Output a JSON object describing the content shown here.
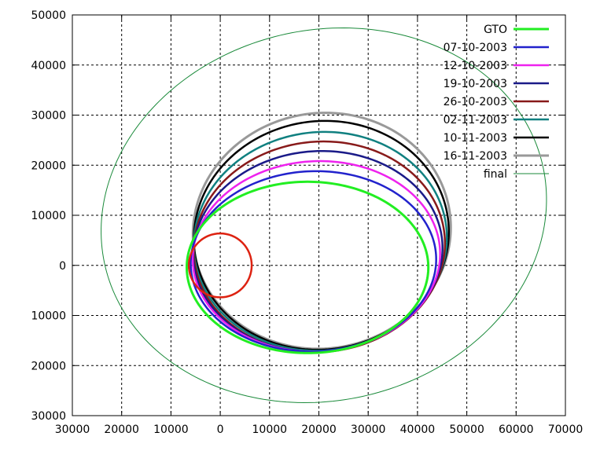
{
  "chart_data": {
    "type": "line",
    "title": "",
    "xlabel": "",
    "ylabel": "",
    "xlim": [
      -30000,
      70000
    ],
    "ylim": [
      -30000,
      50000
    ],
    "x_ticks": [
      -30000,
      -20000,
      -10000,
      0,
      10000,
      20000,
      30000,
      40000,
      50000,
      60000,
      70000
    ],
    "x_tick_labels": [
      "30000",
      "20000",
      "10000",
      "0",
      "10000",
      "20000",
      "30000",
      "40000",
      "50000",
      "60000",
      "70000"
    ],
    "y_ticks": [
      -30000,
      -20000,
      -10000,
      0,
      10000,
      20000,
      30000,
      40000,
      50000
    ],
    "y_tick_labels": [
      "30000",
      "20000",
      "10000",
      "0",
      "10000",
      "20000",
      "30000",
      "40000",
      "50000"
    ],
    "grid": true,
    "legend_position": "top-right",
    "earth": {
      "center": [
        0,
        0
      ],
      "radius": 6378,
      "color": "#dd2211"
    },
    "series": [
      {
        "name": "GTO",
        "color": "#22ee22",
        "width": 3,
        "orbit": {
          "cx": 17700,
          "cy": -400,
          "a": 24500,
          "b": 17100,
          "angle_deg": 0
        }
      },
      {
        "name": "07-10-2003",
        "color": "#2222cc",
        "width": 2.5,
        "orbit": {
          "cx": 18900,
          "cy": 800,
          "a": 24900,
          "b": 18000,
          "angle_deg": 2
        }
      },
      {
        "name": "12-10-2003",
        "color": "#ee22ee",
        "width": 2.5,
        "orbit": {
          "cx": 19500,
          "cy": 1800,
          "a": 25100,
          "b": 19000,
          "angle_deg": 3
        }
      },
      {
        "name": "19-10-2003",
        "color": "#1a1a88",
        "width": 2.5,
        "orbit": {
          "cx": 19800,
          "cy": 2800,
          "a": 25300,
          "b": 20000,
          "angle_deg": 4
        }
      },
      {
        "name": "26-10-2003",
        "color": "#881a1a",
        "width": 2.5,
        "orbit": {
          "cx": 20100,
          "cy": 3700,
          "a": 25500,
          "b": 21000,
          "angle_deg": 5
        }
      },
      {
        "name": "02-11-2003",
        "color": "#108080",
        "width": 2.5,
        "orbit": {
          "cx": 20300,
          "cy": 4800,
          "a": 25700,
          "b": 21800,
          "angle_deg": 6
        }
      },
      {
        "name": "10-11-2003",
        "color": "#000000",
        "width": 2.5,
        "orbit": {
          "cx": 20500,
          "cy": 6000,
          "a": 25900,
          "b": 22800,
          "angle_deg": 7
        }
      },
      {
        "name": "16-11-2003",
        "color": "#999999",
        "width": 3,
        "orbit": {
          "cx": 20600,
          "cy": 6900,
          "a": 26200,
          "b": 23500,
          "angle_deg": 8
        }
      },
      {
        "name": "final",
        "color": "#1a8a3a",
        "width": 1,
        "orbit": {
          "cx": 21000,
          "cy": 10000,
          "a": 45500,
          "b": 37000,
          "angle_deg": 12
        }
      }
    ]
  }
}
